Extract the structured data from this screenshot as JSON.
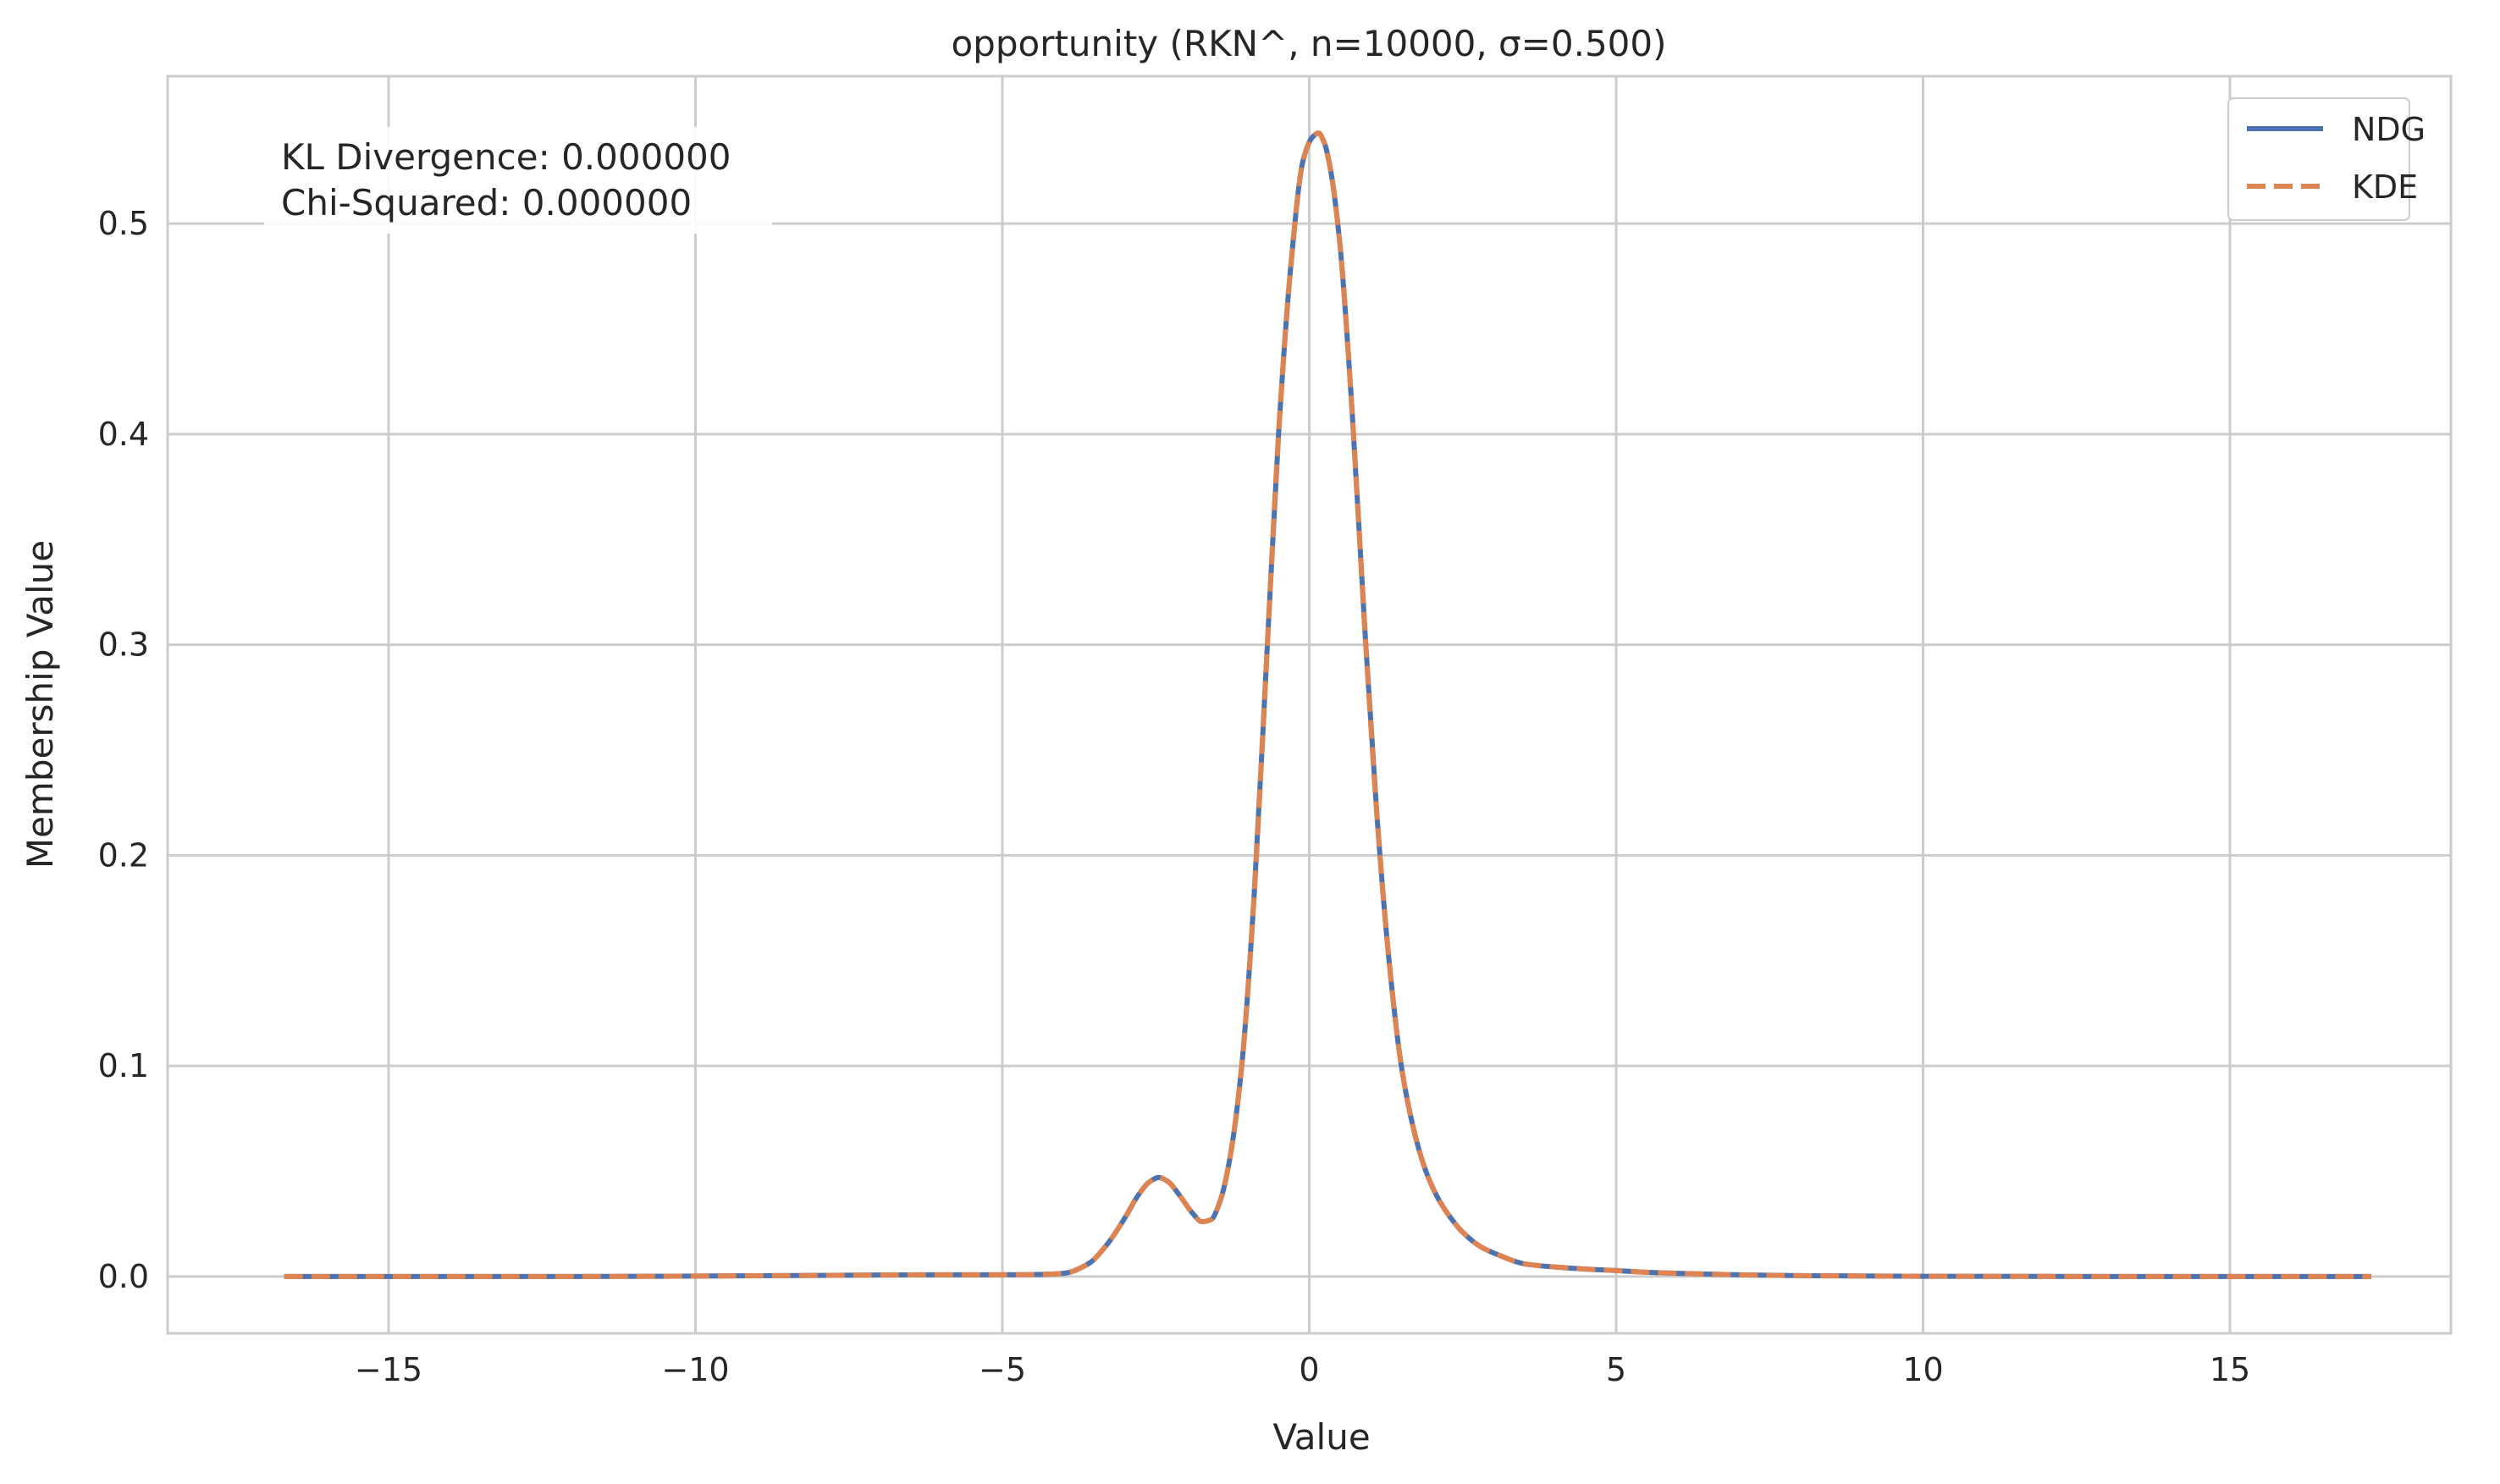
{
  "chart_data": {
    "type": "line",
    "title": "opportunity (RKN^, n=10000, σ=0.500)",
    "xlabel": "Value",
    "ylabel": "Membership Value",
    "xlim": [
      -18.6,
      18.6
    ],
    "ylim": [
      -0.027,
      0.57
    ],
    "xticks": [
      -15,
      -10,
      -5,
      0,
      5,
      10,
      15
    ],
    "xtick_labels": [
      "−15",
      "−10",
      "−5",
      "0",
      "5",
      "10",
      "15"
    ],
    "yticks": [
      0.0,
      0.1,
      0.2,
      0.3,
      0.4,
      0.5
    ],
    "ytick_labels": [
      "0.0",
      "0.1",
      "0.2",
      "0.3",
      "0.4",
      "0.5"
    ],
    "grid": true,
    "legend_position": "top-right",
    "annotation_lines": [
      "KL Divergence: 0.000000",
      "Chi-Squared: 0.000000"
    ],
    "series": [
      {
        "name": "NDG",
        "style": "solid",
        "color": "#4c72b0",
        "x": [
          -16.7,
          -12,
          -8,
          -6,
          -5,
          -4.5,
          -4.0,
          -3.6,
          -3.3,
          -3.0,
          -2.8,
          -2.6,
          -2.45,
          -2.3,
          -2.1,
          -1.9,
          -1.75,
          -1.6,
          -1.45,
          -1.3,
          -1.1,
          -0.9,
          -0.7,
          -0.5,
          -0.3,
          -0.1,
          0.05,
          0.15,
          0.25,
          0.35,
          0.5,
          0.7,
          0.9,
          1.1,
          1.3,
          1.5,
          1.7,
          1.9,
          2.1,
          2.3,
          2.5,
          2.8,
          3.1,
          3.5,
          4.0,
          4.5,
          5.0,
          5.5,
          6.0,
          7.0,
          8.0,
          10.0,
          13.0,
          17.3
        ],
        "values": [
          0.0,
          0.0,
          0.0005,
          0.0008,
          0.0008,
          0.0009,
          0.0015,
          0.006,
          0.015,
          0.028,
          0.038,
          0.045,
          0.047,
          0.045,
          0.038,
          0.03,
          0.026,
          0.027,
          0.036,
          0.055,
          0.1,
          0.18,
          0.29,
          0.4,
          0.48,
          0.53,
          0.541,
          0.543,
          0.538,
          0.525,
          0.49,
          0.41,
          0.31,
          0.22,
          0.15,
          0.1,
          0.07,
          0.05,
          0.037,
          0.028,
          0.021,
          0.014,
          0.01,
          0.006,
          0.0045,
          0.0035,
          0.0028,
          0.002,
          0.0015,
          0.0008,
          0.0004,
          0.0001,
          0.0,
          0.0
        ]
      },
      {
        "name": "KDE",
        "style": "dashed",
        "color": "#dd8452",
        "x": [
          -16.7,
          -12,
          -8,
          -6,
          -5,
          -4.5,
          -4.0,
          -3.6,
          -3.3,
          -3.0,
          -2.8,
          -2.6,
          -2.45,
          -2.3,
          -2.1,
          -1.9,
          -1.75,
          -1.6,
          -1.45,
          -1.3,
          -1.1,
          -0.9,
          -0.7,
          -0.5,
          -0.3,
          -0.1,
          0.05,
          0.15,
          0.25,
          0.35,
          0.5,
          0.7,
          0.9,
          1.1,
          1.3,
          1.5,
          1.7,
          1.9,
          2.1,
          2.3,
          2.5,
          2.8,
          3.1,
          3.5,
          4.0,
          4.5,
          5.0,
          5.5,
          6.0,
          7.0,
          8.0,
          10.0,
          13.0,
          17.3
        ],
        "values": [
          0.0,
          0.0,
          0.0005,
          0.0008,
          0.0008,
          0.0009,
          0.0015,
          0.006,
          0.015,
          0.028,
          0.038,
          0.045,
          0.047,
          0.045,
          0.038,
          0.03,
          0.026,
          0.027,
          0.036,
          0.055,
          0.1,
          0.18,
          0.29,
          0.4,
          0.48,
          0.53,
          0.541,
          0.543,
          0.538,
          0.525,
          0.49,
          0.41,
          0.31,
          0.22,
          0.15,
          0.1,
          0.07,
          0.05,
          0.037,
          0.028,
          0.021,
          0.014,
          0.01,
          0.006,
          0.0045,
          0.0035,
          0.0028,
          0.002,
          0.0015,
          0.0008,
          0.0004,
          0.0001,
          0.0,
          0.0
        ]
      }
    ]
  }
}
